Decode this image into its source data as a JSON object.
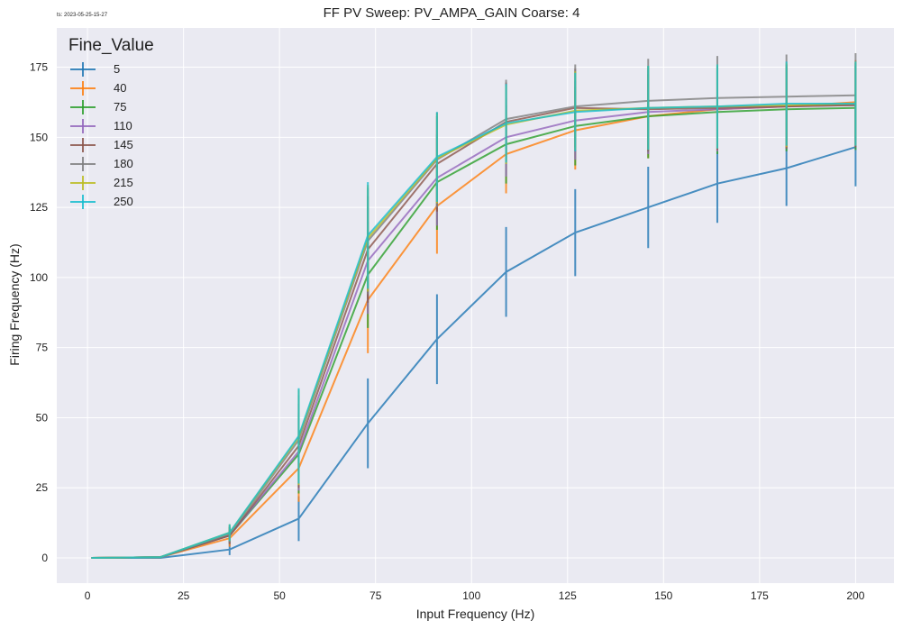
{
  "timestamp": "ts: 2023-05-25-15-27",
  "chart_data": {
    "type": "line",
    "title": "FF PV Sweep: PV_AMPA_GAIN Coarse: 4",
    "xlabel": "Input Frequency (Hz)",
    "ylabel": "Firing Frequency (Hz)",
    "xlim": [
      -8,
      210
    ],
    "ylim": [
      -9,
      189
    ],
    "xticks": [
      0,
      25,
      50,
      75,
      100,
      125,
      150,
      175,
      200
    ],
    "yticks": [
      0,
      25,
      50,
      75,
      100,
      125,
      150,
      175
    ],
    "grid": true,
    "legend_title": "Fine_Value",
    "legend_position": "top-left",
    "x": [
      1,
      19,
      37,
      55,
      73,
      91,
      109,
      127,
      146,
      164,
      182,
      200
    ],
    "series": [
      {
        "name": "5",
        "color": "#1f77b4",
        "values": [
          0,
          0,
          3,
          14,
          48,
          78,
          102,
          116,
          125,
          133.5,
          139,
          146.5
        ],
        "errors": [
          0,
          0,
          2,
          8,
          16,
          16,
          16,
          15.5,
          14.5,
          14,
          13.5,
          14
        ]
      },
      {
        "name": "40",
        "color": "#ff7f0e",
        "values": [
          0,
          0.3,
          7,
          32,
          92,
          125.5,
          144,
          152.5,
          157.5,
          160,
          161,
          162.5
        ],
        "errors": [
          0,
          0,
          3,
          12,
          19,
          17,
          14,
          14,
          15,
          15,
          15,
          15
        ]
      },
      {
        "name": "75",
        "color": "#2ca02c",
        "values": [
          0,
          0.3,
          8,
          37,
          101,
          134,
          147.5,
          154,
          157.5,
          159,
          160,
          160.5
        ],
        "errors": [
          0,
          0,
          3,
          14,
          19,
          17,
          14,
          14,
          15,
          15,
          15,
          15
        ]
      },
      {
        "name": "110",
        "color": "#9467bd",
        "values": [
          0,
          0.3,
          8,
          38,
          106,
          135.5,
          150,
          156,
          159,
          160,
          161,
          161.5
        ],
        "errors": [
          0,
          0,
          3,
          14,
          19,
          17,
          14,
          14,
          15,
          15,
          15,
          15
        ]
      },
      {
        "name": "145",
        "color": "#8c564b",
        "values": [
          0,
          0.3,
          8,
          40,
          110,
          140.5,
          155.5,
          160.5,
          160,
          160.5,
          161,
          161.5
        ],
        "errors": [
          0,
          0,
          3,
          15,
          19,
          17,
          14,
          14,
          15,
          15,
          15,
          15
        ]
      },
      {
        "name": "180",
        "color": "#7f7f7f",
        "values": [
          0,
          0.3,
          8.5,
          42,
          113,
          142,
          156.5,
          161,
          163,
          164,
          164.5,
          165
        ],
        "errors": [
          0,
          0,
          3,
          16,
          19,
          17,
          14,
          15,
          15,
          15,
          15,
          15
        ]
      },
      {
        "name": "215",
        "color": "#bcbd22",
        "values": [
          0,
          0.3,
          9,
          43,
          114,
          142.5,
          154.5,
          159.5,
          160.5,
          161,
          161.5,
          162
        ],
        "errors": [
          0,
          0,
          3,
          17,
          19,
          16,
          14,
          14,
          15,
          15,
          15,
          15
        ]
      },
      {
        "name": "250",
        "color": "#17becf",
        "values": [
          0,
          0.3,
          9,
          43.5,
          115,
          143,
          155,
          159,
          160.5,
          161,
          162,
          162
        ],
        "errors": [
          0,
          0,
          3,
          17,
          19,
          16,
          14,
          14,
          15,
          15,
          15,
          15
        ]
      }
    ]
  }
}
